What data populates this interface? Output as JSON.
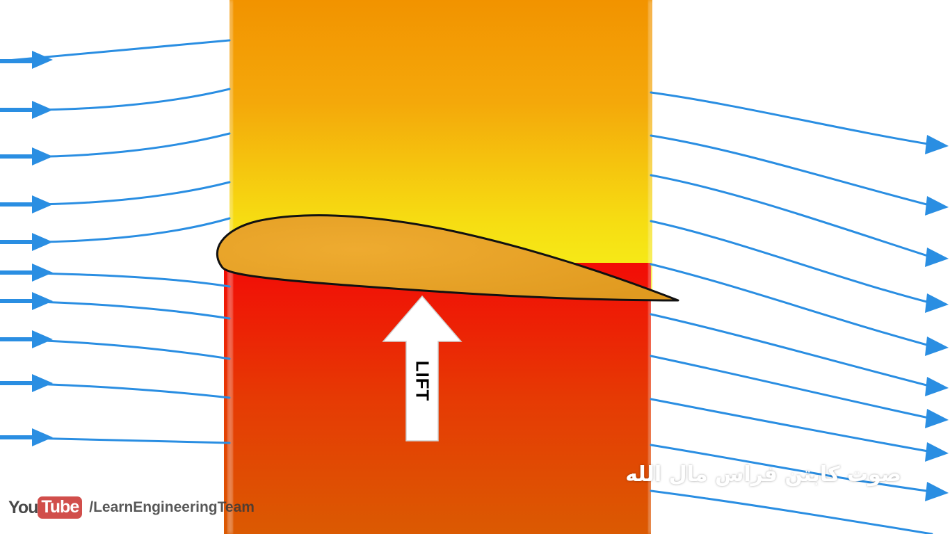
{
  "diagram": {
    "lift_label": "LIFT",
    "voice_credit": "صوت كابتن فراس مال الله",
    "colors": {
      "low_pressure_top": "#f29300",
      "low_pressure_mid": "#f6b400",
      "low_pressure_near_wing": "#f6f21a",
      "high_pressure_near_wing": "#f20c06",
      "high_pressure_bottom": "#db5a02",
      "airfoil_fill": "#e8a326",
      "streamline": "#2a8ee2",
      "lift_arrow": "#ffffff"
    }
  },
  "watermark": {
    "you": "You",
    "tube": "Tube",
    "channel": "/LearnEngineeringTeam"
  }
}
